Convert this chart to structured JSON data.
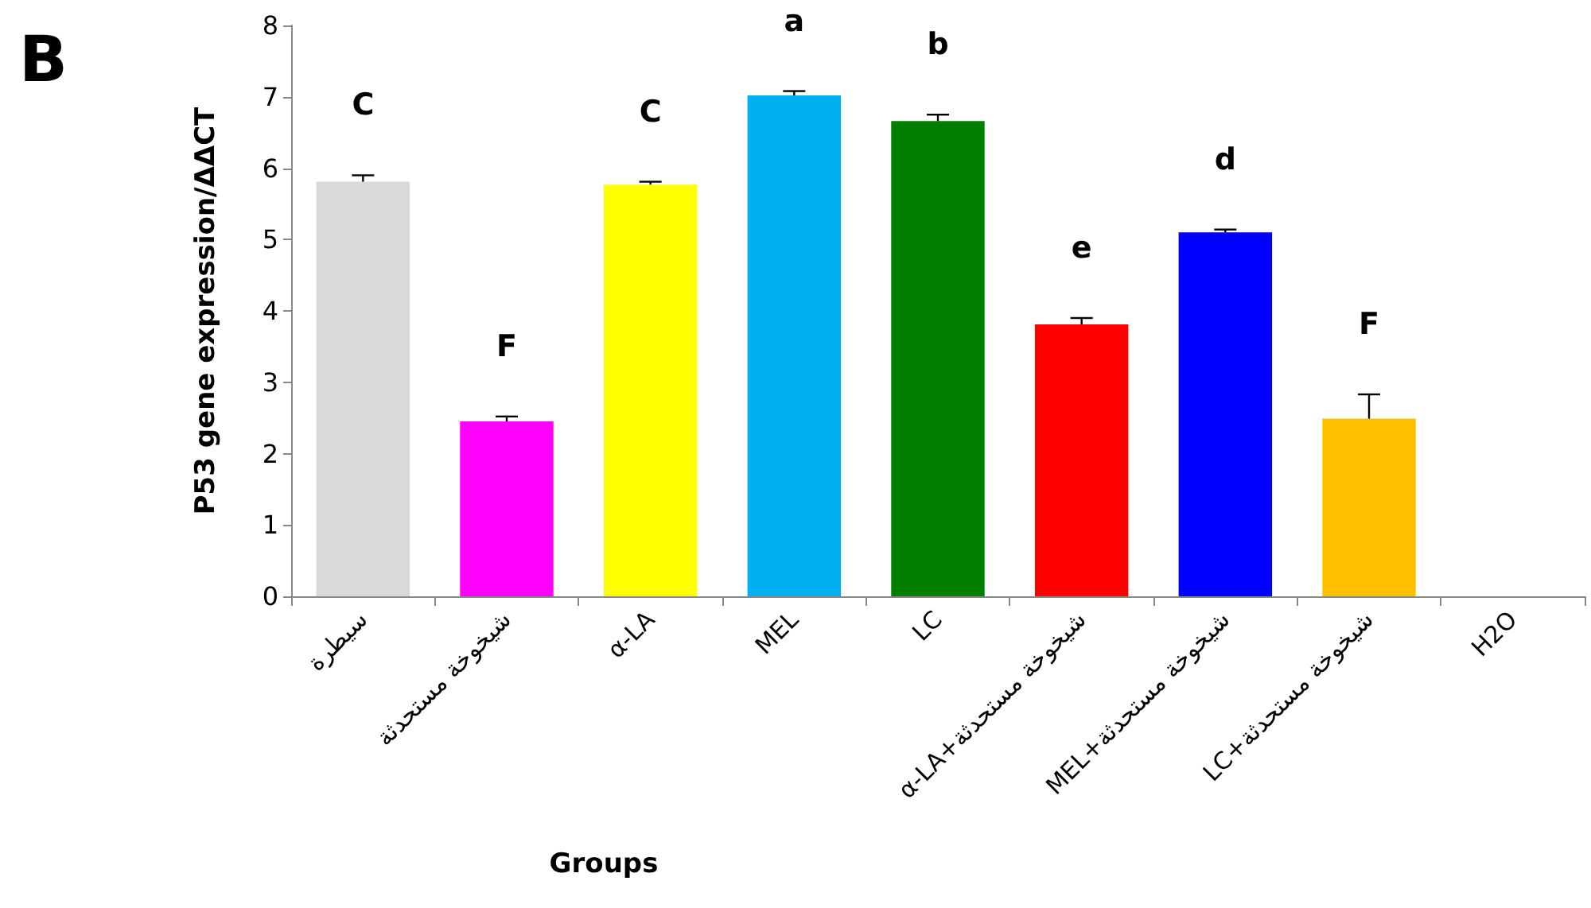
{
  "chart_data": {
    "type": "bar",
    "xlabel": "Groups",
    "ylabel": "P53 gene expression/ΔΔCT",
    "categories": [
      "سيطرة",
      "شيخوخة مستحدثة",
      "α-LA",
      "MEL",
      "LC",
      "α-LA+شيخوخة مستحدثة",
      "MEL+شيخوخة مستحدثة",
      "LC+شيخوخة مستحدثة",
      "H2O"
    ],
    "values": [
      5.81,
      2.45,
      5.77,
      7.02,
      6.66,
      3.81,
      5.1,
      2.49,
      null
    ],
    "errors": [
      [
        5.81,
        5.9
      ],
      [
        2.45,
        2.52
      ],
      [
        5.77,
        5.81
      ],
      [
        7.02,
        7.08
      ],
      [
        6.66,
        6.75
      ],
      [
        3.81,
        3.9
      ],
      [
        5.1,
        5.14
      ],
      [
        2.49,
        2.83
      ],
      null
    ],
    "colors": [
      "#d9d9d9",
      "#ff00ff",
      "#ffff00",
      "#00b0f0",
      "#007f00",
      "#ff0000",
      "#0000ff",
      "#ffc000",
      "#888888"
    ],
    "ylim": [
      0,
      8
    ],
    "yticks": [
      0,
      1,
      2,
      3,
      4,
      5,
      6,
      7,
      8
    ],
    "grid": false,
    "annotations": [
      "B",
      "C",
      "F",
      "C",
      "a",
      "b",
      "e",
      "d",
      "F"
    ]
  }
}
